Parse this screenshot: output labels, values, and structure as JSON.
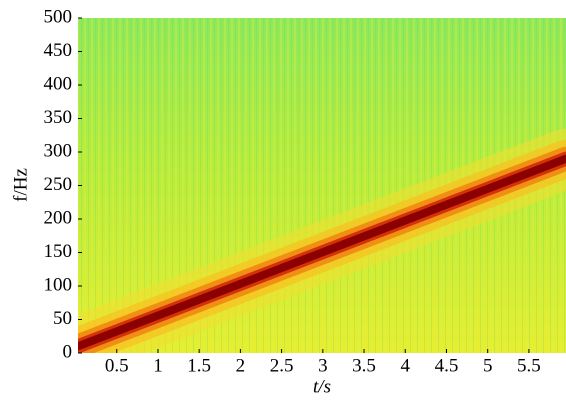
{
  "chart_data": {
    "type": "spectrogram",
    "xlabel": "t/s",
    "ylabel": "f/Hz",
    "x": [
      0.03,
      5.95
    ],
    "values": [
      10,
      290
    ],
    "color": "#8b0000",
    "xlim": [
      0.03,
      5.95
    ],
    "ylim": [
      0,
      500
    ],
    "xticks": [
      0.5,
      1.0,
      1.5,
      2.0,
      2.5,
      3.0,
      3.5,
      4.0,
      4.5,
      5.0,
      5.5
    ],
    "yticks": [
      0,
      50,
      100,
      150,
      200,
      250,
      300,
      350,
      400,
      450,
      500
    ]
  }
}
